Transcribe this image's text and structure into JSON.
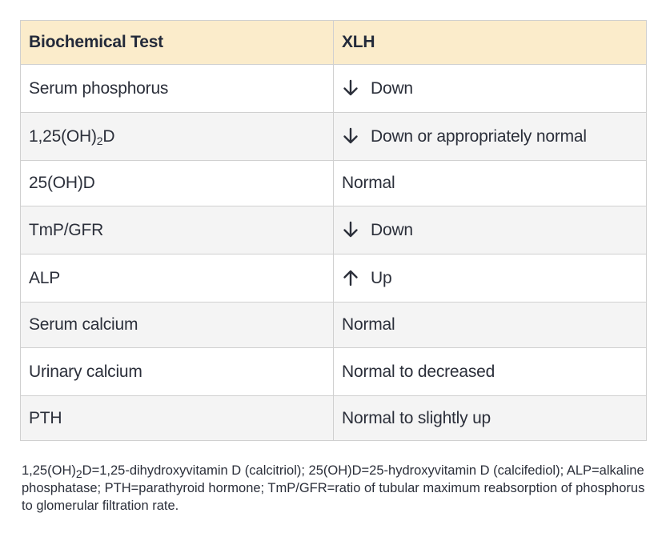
{
  "table": {
    "headers": [
      "Biochemical Test",
      "XLH"
    ],
    "rows": [
      {
        "test_pre": "Serum phosphorus",
        "test_sub": "",
        "test_post": "",
        "arrow": "down",
        "arrow_icon": "arrow-down-icon",
        "value": "Down"
      },
      {
        "test_pre": "1,25(OH)",
        "test_sub": "2",
        "test_post": "D",
        "arrow": "down",
        "arrow_icon": "arrow-down-icon",
        "value": "Down or appropriately normal"
      },
      {
        "test_pre": "25(OH)D",
        "test_sub": "",
        "test_post": "",
        "arrow": "",
        "arrow_icon": "",
        "value": "Normal"
      },
      {
        "test_pre": "TmP/GFR",
        "test_sub": "",
        "test_post": "",
        "arrow": "down",
        "arrow_icon": "arrow-down-icon",
        "value": "Down"
      },
      {
        "test_pre": "ALP",
        "test_sub": "",
        "test_post": "",
        "arrow": "up",
        "arrow_icon": "arrow-up-icon",
        "value": "Up"
      },
      {
        "test_pre": "Serum calcium",
        "test_sub": "",
        "test_post": "",
        "arrow": "",
        "arrow_icon": "",
        "value": "Normal"
      },
      {
        "test_pre": "Urinary calcium",
        "test_sub": "",
        "test_post": "",
        "arrow": "",
        "arrow_icon": "",
        "value": "Normal to decreased"
      },
      {
        "test_pre": "PTH",
        "test_sub": "",
        "test_post": "",
        "arrow": "",
        "arrow_icon": "",
        "value": "Normal to slightly up"
      }
    ]
  },
  "footnote": {
    "pre": "1,25(OH)",
    "sub": "2",
    "post": "D=1,25-dihydroxyvitamin D (calcitriol); 25(OH)D=25-hydroxyvitamin D (calcifediol); ALP=alkaline phosphatase; PTH=parathyroid hormone; TmP/GFR=ratio of tubular maximum reabsorption of phosphorus to glomerular filtration rate."
  },
  "colors": {
    "header_bg": "#fbeccb",
    "row_alt_bg": "#f4f4f4",
    "border": "#d0d0d0",
    "text": "#2b2f3a"
  }
}
